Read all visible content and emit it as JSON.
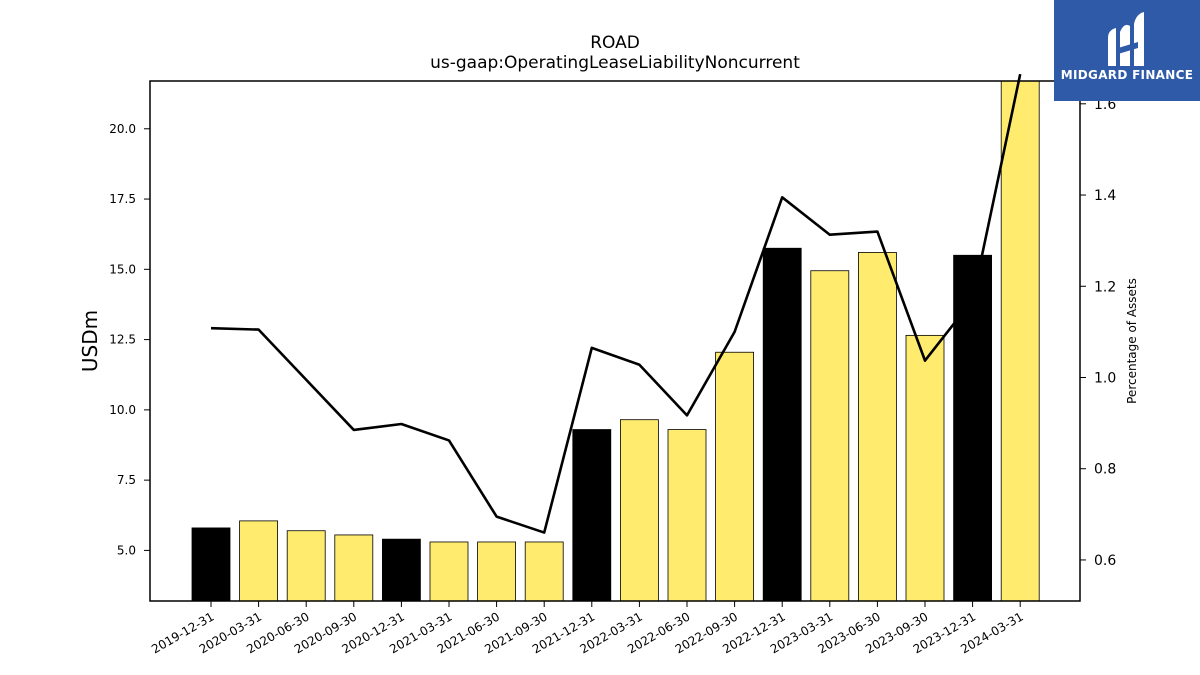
{
  "chart_data": {
    "type": "bar",
    "title": "ROAD",
    "subtitle": "us-gaap:OperatingLeaseLiabilityNoncurrent",
    "ylabel": "USDm",
    "ylabel_right": "Percentage of Assets",
    "categories": [
      "2019-12-31",
      "2020-03-31",
      "2020-06-30",
      "2020-09-30",
      "2020-12-31",
      "2021-03-31",
      "2021-06-30",
      "2021-09-30",
      "2021-12-31",
      "2022-03-31",
      "2022-06-30",
      "2022-09-30",
      "2022-12-31",
      "2023-03-31",
      "2023-06-30",
      "2023-09-30",
      "2023-12-31",
      "2024-03-31"
    ],
    "series": [
      {
        "kind": "bar",
        "axis": "left",
        "values": [
          5.8,
          6.05,
          5.7,
          5.55,
          5.4,
          5.3,
          5.3,
          5.3,
          9.3,
          9.65,
          9.3,
          12.05,
          15.75,
          14.95,
          15.6,
          12.65,
          15.5,
          21.7
        ],
        "colors": [
          "#000000",
          "#ffec6e",
          "#ffec6e",
          "#ffec6e",
          "#000000",
          "#ffec6e",
          "#ffec6e",
          "#ffec6e",
          "#000000",
          "#ffec6e",
          "#ffec6e",
          "#ffec6e",
          "#000000",
          "#ffec6e",
          "#ffec6e",
          "#ffec6e",
          "#000000",
          "#ffec6e"
        ]
      },
      {
        "kind": "line",
        "axis": "right",
        "color": "#000000",
        "values": [
          1.108,
          1.105,
          0.995,
          0.885,
          0.898,
          0.862,
          0.695,
          0.66,
          1.065,
          1.028,
          0.917,
          1.1,
          1.395,
          1.313,
          1.32,
          1.037,
          1.17,
          1.665
        ]
      }
    ],
    "ylim": [
      3.2,
      21.7
    ],
    "ylim_right": [
      0.51,
      1.65
    ],
    "yticks": [
      5.0,
      7.5,
      10.0,
      12.5,
      15.0,
      17.5,
      20.0
    ],
    "yticks_right": [
      0.6,
      0.8,
      1.0,
      1.2,
      1.4,
      1.6
    ],
    "grid": false
  },
  "logo": {
    "text": "MIDGARD FINANCE",
    "background": "#2f5aa8"
  }
}
